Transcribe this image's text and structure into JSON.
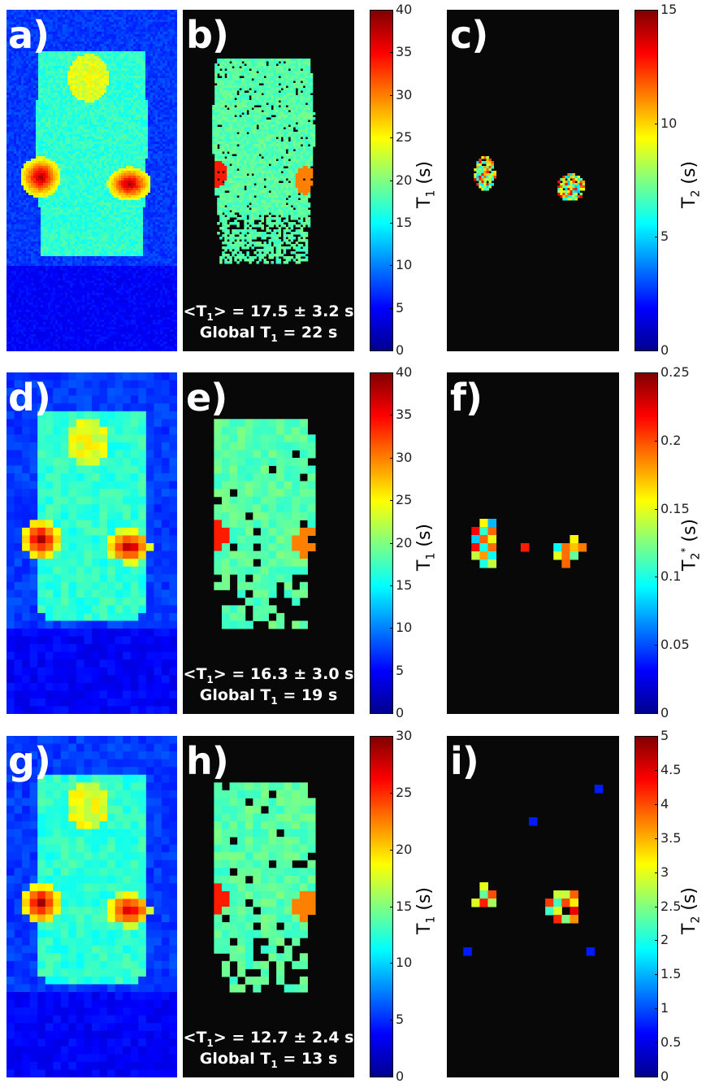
{
  "rows": [
    {
      "panel_labels": [
        "a)",
        "b)",
        "c)"
      ],
      "t1_stat": {
        "mean": "<T",
        "sub": "1",
        "rest": "> = 17.5 ± 3.2 s",
        "global_pre": "Global T",
        "global_sub": "1",
        "global_rest": " = 22 s"
      },
      "t1_ticks": [
        "40",
        "35",
        "30",
        "25",
        "20",
        "15",
        "10",
        "5",
        "0"
      ],
      "t2_ticks": [
        "15",
        "10",
        "5",
        "0"
      ]
    },
    {
      "panel_labels": [
        "d)",
        "e)",
        "f)"
      ],
      "t1_stat": {
        "mean": "<T",
        "sub": "1",
        "rest": "> = 16.3 ± 3.0 s",
        "global_pre": "Global T",
        "global_sub": "1",
        "global_rest": " = 19 s"
      },
      "t1_ticks": [
        "40",
        "35",
        "30",
        "25",
        "20",
        "15",
        "10",
        "5",
        "0"
      ],
      "t2_ticks": [
        "0.25",
        "0.2",
        "0.15",
        "0.1",
        "0.05",
        "0"
      ]
    },
    {
      "panel_labels": [
        "g)",
        "h)",
        "i)"
      ],
      "t1_stat": {
        "mean": "<T",
        "sub": "1",
        "rest": "> = 12.7 ± 2.4 s",
        "global_pre": "Global T",
        "global_sub": "1",
        "global_rest": " = 13 s"
      },
      "t1_ticks": [
        "30",
        "25",
        "20",
        "15",
        "10",
        "5",
        "0"
      ],
      "t2_ticks": [
        "5",
        "4.5",
        "4",
        "3.5",
        "3",
        "2.5",
        "2",
        "1.5",
        "1",
        "0.5",
        "0"
      ]
    }
  ],
  "colorbar_titles": {
    "t1": {
      "main": "T",
      "sub": "1",
      "unit": " (s)"
    },
    "t2": {
      "main": "T",
      "sub": "2",
      "unit": " (s)"
    },
    "t2_prime": {
      "main": "T",
      "sub": "2",
      "sup": "*",
      "unit": " (s)"
    }
  },
  "colors": {
    "background_map": "#080808",
    "jet_stops": [
      "#00008f",
      "#0000ff",
      "#0080ff",
      "#00ffff",
      "#80ff80",
      "#ffff00",
      "#ff8000",
      "#ff0000",
      "#800000"
    ]
  }
}
